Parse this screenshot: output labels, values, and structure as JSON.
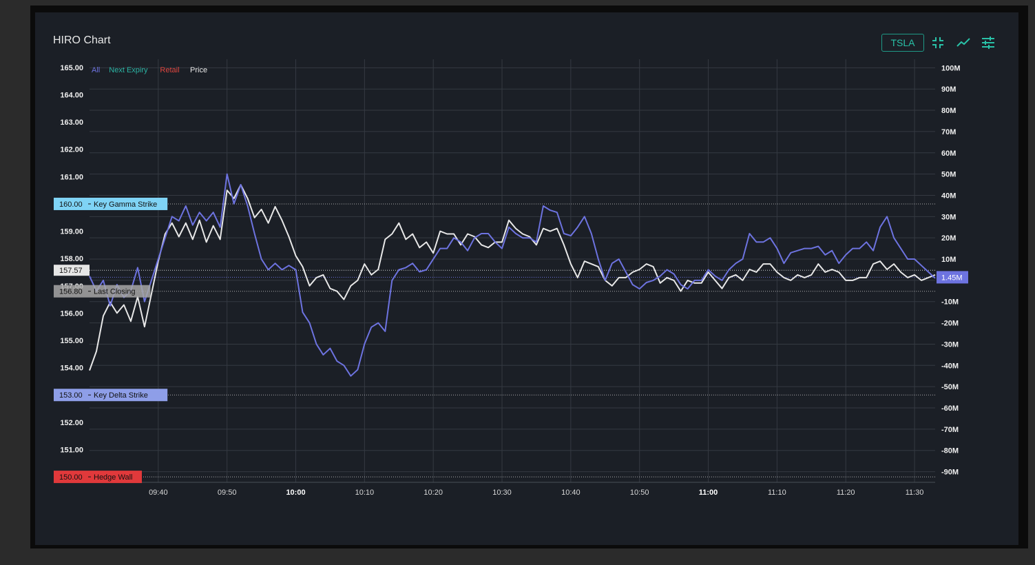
{
  "window": {
    "title": "HIRO Chart",
    "ticker": "TSLA",
    "tools": [
      {
        "name": "collapse-icon"
      },
      {
        "name": "line-chart-icon"
      },
      {
        "name": "settings-sliders-icon"
      }
    ]
  },
  "chart_data": {
    "type": "line",
    "title": "HIRO Chart",
    "legend": {
      "placement": "top-left",
      "entries": [
        {
          "label": "All",
          "color": "#6d73e0"
        },
        {
          "label": "Next Expiry",
          "color": "#2bb3a3"
        },
        {
          "label": "Retail",
          "color": "#e0463f"
        },
        {
          "label": "Price",
          "color": "#e8e8e8"
        }
      ]
    },
    "x_ticks": [
      "09:40",
      "09:50",
      "10:00",
      "10:10",
      "10:20",
      "10:30",
      "10:40",
      "10:50",
      "11:00",
      "11:10",
      "11:20",
      "11:30"
    ],
    "x_ticks_bold": [
      "10:00",
      "11:00"
    ],
    "xlim_minutes_from_0930": [
      0,
      123
    ],
    "left_axis": {
      "ylim": [
        149.8,
        165.3
      ],
      "ticks": [
        "150.00",
        "151.00",
        "152.00",
        "153.00",
        "154.00",
        "155.00",
        "156.00",
        "157.00",
        "158.00",
        "159.00",
        "160.00",
        "161.00",
        "162.00",
        "163.00",
        "164.00",
        "165.00"
      ]
    },
    "right_axis": {
      "ylim": [
        -95,
        104
      ],
      "ticks": [
        "-90M",
        "-80M",
        "-70M",
        "-60M",
        "-50M",
        "-40M",
        "-30M",
        "-20M",
        "-10M",
        "10M",
        "20M",
        "30M",
        "40M",
        "50M",
        "60M",
        "70M",
        "80M",
        "90M",
        "100M"
      ]
    },
    "grid": true,
    "levels": [
      {
        "value": 160.0,
        "label_value": "160.00",
        "label": "Key Gamma Strike",
        "color": "#7fd3f5"
      },
      {
        "value": 153.0,
        "label_value": "153.00",
        "label": "Key Delta Strike",
        "color": "#8e9ee8"
      },
      {
        "value": 150.0,
        "label_value": "150.00",
        "label": "Hedge Wall",
        "color": "#e0393b"
      },
      {
        "value": 156.8,
        "label_value": "156.80",
        "label": "Last Closing",
        "color": "#a7a7a7"
      }
    ],
    "current_price": {
      "value": 157.57,
      "label": "157.57"
    },
    "current_all": {
      "value": 1.45,
      "label": "1.45M",
      "color": "#6d73e0"
    },
    "series": [
      {
        "name": "Price",
        "axis": "left",
        "color": "#e8e8e8",
        "x": [
          0,
          1,
          2,
          3,
          4,
          5,
          6,
          7,
          8,
          9,
          10,
          11,
          12,
          13,
          14,
          15,
          16,
          17,
          18,
          19,
          20,
          21,
          22,
          23,
          24,
          25,
          26,
          27,
          28,
          29,
          30,
          31,
          32,
          33,
          34,
          35,
          36,
          37,
          38,
          39,
          40,
          41,
          42,
          43,
          44,
          45,
          46,
          47,
          48,
          49,
          50,
          51,
          52,
          53,
          54,
          55,
          56,
          57,
          58,
          59,
          60,
          61,
          62,
          63,
          64,
          65,
          66,
          67,
          68,
          69,
          70,
          71,
          72,
          73,
          74,
          75,
          76,
          77,
          78,
          79,
          80,
          81,
          82,
          83,
          84,
          85,
          86,
          87,
          88,
          89,
          90,
          91,
          92,
          93,
          94,
          95,
          96,
          97,
          98,
          99,
          100,
          101,
          102,
          103,
          104,
          105,
          106,
          107,
          108,
          109,
          110,
          111,
          112,
          113,
          114,
          115,
          116,
          117,
          118,
          119,
          120,
          121,
          122,
          123
        ],
        "y": [
          153.9,
          154.6,
          155.9,
          156.4,
          156.0,
          156.3,
          155.7,
          156.6,
          155.5,
          156.7,
          157.9,
          158.9,
          159.3,
          158.8,
          159.3,
          158.7,
          159.4,
          158.6,
          159.2,
          158.7,
          160.5,
          160.2,
          160.7,
          160.2,
          159.5,
          159.8,
          159.3,
          159.9,
          159.4,
          158.8,
          158.1,
          157.7,
          157.0,
          157.3,
          157.4,
          156.9,
          156.8,
          156.5,
          157.0,
          157.2,
          157.8,
          157.4,
          157.6,
          158.7,
          158.9,
          159.3,
          158.7,
          158.9,
          158.4,
          158.6,
          158.2,
          159.0,
          158.9,
          158.9,
          158.5,
          158.9,
          158.8,
          158.5,
          158.4,
          158.6,
          158.6,
          159.4,
          159.1,
          158.9,
          158.8,
          158.5,
          159.1,
          159.0,
          159.1,
          158.5,
          157.8,
          157.3,
          157.9,
          157.8,
          157.7,
          157.2,
          157.0,
          157.3,
          157.3,
          157.5,
          157.6,
          157.8,
          157.7,
          157.1,
          157.3,
          157.2,
          156.8,
          157.2,
          157.1,
          157.1,
          157.5,
          157.2,
          156.9,
          157.3,
          157.4,
          157.2,
          157.6,
          157.5,
          157.8,
          157.8,
          157.5,
          157.3,
          157.2,
          157.4,
          157.3,
          157.4,
          157.8,
          157.5,
          157.6,
          157.5,
          157.2,
          157.2,
          157.3,
          157.3,
          157.8,
          157.9,
          157.6,
          157.8,
          157.5,
          157.3,
          157.4,
          157.2,
          157.3,
          157.4
        ]
      },
      {
        "name": "All",
        "axis": "right",
        "color": "#6d73e0",
        "x": [
          0,
          1,
          2,
          3,
          4,
          5,
          6,
          7,
          8,
          9,
          10,
          11,
          12,
          13,
          14,
          15,
          16,
          17,
          18,
          19,
          20,
          21,
          22,
          23,
          24,
          25,
          26,
          27,
          28,
          29,
          30,
          31,
          32,
          33,
          34,
          35,
          36,
          37,
          38,
          39,
          40,
          41,
          42,
          43,
          44,
          45,
          46,
          47,
          48,
          49,
          50,
          51,
          52,
          53,
          54,
          55,
          56,
          57,
          58,
          59,
          60,
          61,
          62,
          63,
          64,
          65,
          66,
          67,
          68,
          69,
          70,
          71,
          72,
          73,
          74,
          75,
          76,
          77,
          78,
          79,
          80,
          81,
          82,
          83,
          84,
          85,
          86,
          87,
          88,
          89,
          90,
          91,
          92,
          93,
          94,
          95,
          96,
          97,
          98,
          99,
          100,
          101,
          102,
          103,
          104,
          105,
          106,
          107,
          108,
          109,
          110,
          111,
          112,
          113,
          114,
          115,
          116,
          117,
          118,
          119,
          120,
          121,
          122,
          123
        ],
        "y": [
          2,
          -5,
          0,
          -12,
          -2,
          -8,
          -5,
          6,
          -10,
          0,
          10,
          20,
          30,
          28,
          35,
          26,
          32,
          28,
          32,
          25,
          50,
          36,
          45,
          35,
          22,
          10,
          5,
          8,
          5,
          7,
          5,
          -15,
          -20,
          -30,
          -35,
          -32,
          -38,
          -40,
          -45,
          -42,
          -30,
          -22,
          -20,
          -24,
          0,
          5,
          6,
          8,
          4,
          5,
          10,
          15,
          15,
          20,
          18,
          14,
          20,
          22,
          22,
          18,
          15,
          25,
          22,
          20,
          20,
          18,
          35,
          33,
          32,
          22,
          21,
          25,
          30,
          22,
          10,
          0,
          8,
          10,
          4,
          -2,
          -4,
          -1,
          0,
          2,
          5,
          3,
          -2,
          -4,
          0,
          0,
          5,
          2,
          0,
          5,
          8,
          10,
          22,
          18,
          18,
          20,
          15,
          8,
          13,
          14,
          15,
          15,
          16,
          12,
          14,
          8,
          12,
          15,
          15,
          18,
          14,
          25,
          30,
          20,
          15,
          10,
          10,
          7,
          4,
          1
        ]
      }
    ]
  }
}
